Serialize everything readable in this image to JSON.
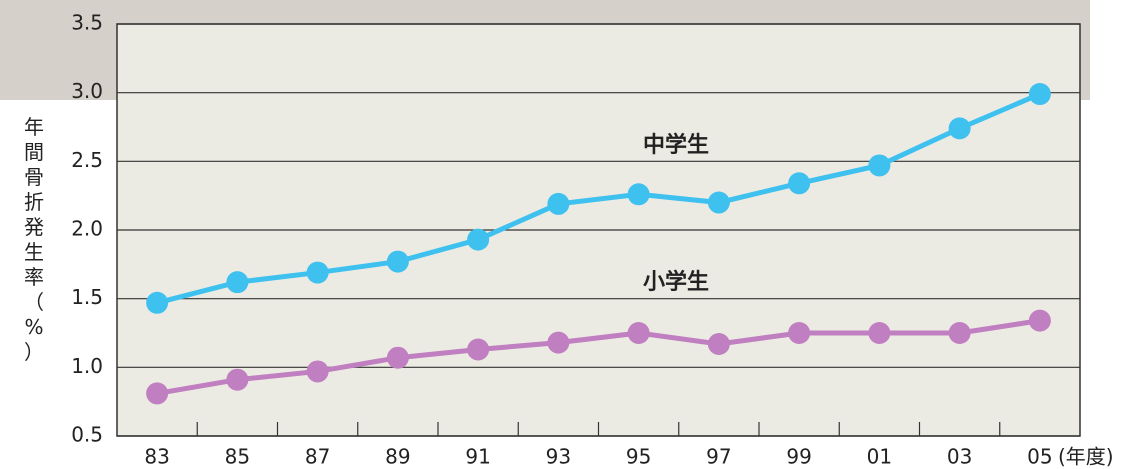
{
  "chart_data": {
    "type": "line",
    "y_label": "年間骨折発生率（%）",
    "x_label": "(年度)",
    "categories": [
      "83",
      "85",
      "87",
      "89",
      "91",
      "93",
      "95",
      "97",
      "99",
      "01",
      "03",
      "05"
    ],
    "series": [
      {
        "name": "中学生",
        "color": "#3fc1ef",
        "values": [
          1.47,
          1.62,
          1.69,
          1.77,
          1.93,
          2.19,
          2.26,
          2.2,
          2.34,
          2.47,
          2.74,
          2.99
        ]
      },
      {
        "name": "小学生",
        "color": "#c07fc0",
        "values": [
          0.81,
          0.91,
          0.97,
          1.07,
          1.13,
          1.18,
          1.25,
          1.17,
          1.25,
          1.25,
          1.25,
          1.34
        ]
      }
    ],
    "ylim": [
      0.5,
      3.5
    ],
    "yticks": [
      0.5,
      {
        "value": 1,
        "label": "1.0"
      },
      1.5,
      {
        "value": 2,
        "label": "2.0"
      },
      2.5,
      {
        "value": 3,
        "label": "3.0"
      },
      3.5
    ],
    "grid": true
  }
}
